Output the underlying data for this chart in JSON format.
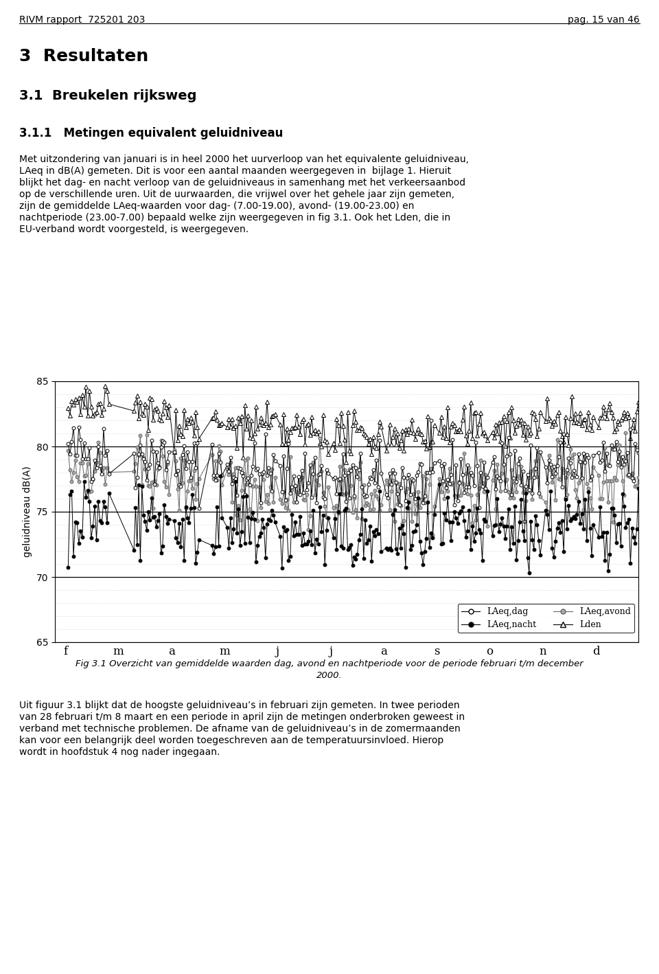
{
  "header_left": "RIVM rapport  725201 203",
  "header_right": "pag. 15 van 46",
  "heading1": "3  Resultaten",
  "heading2": "3.1  Breukelen rijksweg",
  "heading3": "3.1.1   Metingen equivalent geluidniveau",
  "body_text_lines": [
    "Met uitzondering van januari is in heel 2000 het uurverloop van het equivalente geluidniveau,",
    "LAeq in dB(A) gemeten. Dit is voor een aantal maanden weergegeven in  bijlage 1. Hieruit",
    "blijkt het dag- en nacht verloop van de geluidniveaus in samenhang met het verkeersaanbod",
    "op de verschillende uren. Uit de uurwaarden, die vrijwel over het gehele jaar zijn gemeten,",
    "zijn de gemiddelde LAeq-waarden voor dag- (7.00-19.00), avond- (19.00-23.00) en",
    "nachtperiode (23.00-7.00) bepaald welke zijn weergegeven in fig 3.1. Ook het Lden, die in",
    "EU-verband wordt voorgesteld, is weergegeven."
  ],
  "ylabel": "geluidniveau dB(A)",
  "xlabel_ticks": [
    "f",
    "m",
    "a",
    "m",
    "j",
    "j",
    "a",
    "s",
    "o",
    "n",
    "d"
  ],
  "ylim": [
    65,
    85
  ],
  "yticks": [
    65,
    70,
    75,
    80,
    85
  ],
  "n_points_per_month": [
    28,
    31,
    30,
    31,
    30,
    31,
    31,
    30,
    31,
    30,
    31
  ],
  "fig_caption_line1": "Fig 3.1 Overzicht van gemiddelde waarden dag, avond en nachtperiode voor de periode februari t/m december",
  "fig_caption_line2": "2000.",
  "body_text2_lines": [
    "Uit figuur 3.1 blijkt dat de hoogste geluidniveau’s in februari zijn gemeten. In twee perioden",
    "van 28 februari t/m 8 maart en een periode in april zijn de metingen onderbroken geweest in",
    "verband met technische problemen. De afname van de geluidniveau’s in de zomermaanden",
    "kan voor een belangrijk deel worden toegeschreven aan de temperatuursinvloed. Hierop",
    "wordt in hoofdstuk 4 nog nader ingegaan."
  ],
  "dag_base": 78.0,
  "avond_base": 77.0,
  "nacht_base": 73.5,
  "lden_base": 81.5
}
